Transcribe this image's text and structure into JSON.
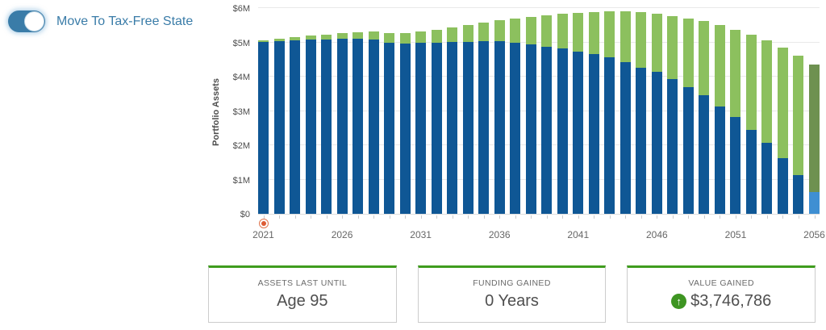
{
  "toggle": {
    "label": "Move To Tax-Free State",
    "state": "on"
  },
  "colors": {
    "bar_blue": "#0f5795",
    "bar_green": "#8cc05e",
    "end_bar_top": "#6e9150",
    "end_bar_bottom": "#3f8fd2",
    "card_accent_green": "#3f9c1e",
    "toggle_blue": "#3a7ca8",
    "marker_orange": "#dd5b33"
  },
  "chart_data": {
    "type": "bar",
    "stacked": true,
    "ylabel": "Portfolio Assets",
    "unit": "millions USD",
    "ylim": [
      0,
      6
    ],
    "grid": "horizontal",
    "y_tick_labels": [
      "$0",
      "$1M",
      "$2M",
      "$3M",
      "$4M",
      "$5M",
      "$6M"
    ],
    "x": [
      2021,
      2022,
      2023,
      2024,
      2025,
      2026,
      2027,
      2028,
      2029,
      2030,
      2031,
      2032,
      2033,
      2034,
      2035,
      2036,
      2037,
      2038,
      2039,
      2040,
      2041,
      2042,
      2043,
      2044,
      2045,
      2046,
      2047,
      2048,
      2049,
      2050,
      2051,
      2052,
      2053,
      2054,
      2055,
      2056
    ],
    "x_tick_labels_shown": [
      "2021",
      "2026",
      "2031",
      "2036",
      "2041",
      "2046",
      "2051",
      "2056"
    ],
    "x_label_interval": 5,
    "series": [
      {
        "name": "series_blue",
        "color": "#0f5795",
        "values": [
          5.01,
          5.04,
          5.06,
          5.08,
          5.09,
          5.1,
          5.1,
          5.08,
          4.98,
          4.97,
          4.99,
          5.0,
          5.01,
          5.02,
          5.03,
          5.04,
          5.0,
          4.95,
          4.88,
          4.82,
          4.74,
          4.67,
          4.57,
          4.43,
          4.26,
          4.13,
          3.92,
          3.7,
          3.45,
          3.14,
          2.83,
          2.45,
          2.06,
          1.63,
          1.14,
          0.63
        ]
      },
      {
        "name": "series_green",
        "color": "#8cc05e",
        "values": [
          0.05,
          0.07,
          0.1,
          0.12,
          0.14,
          0.16,
          0.19,
          0.23,
          0.28,
          0.31,
          0.32,
          0.37,
          0.43,
          0.49,
          0.54,
          0.6,
          0.7,
          0.8,
          0.91,
          1.01,
          1.12,
          1.22,
          1.33,
          1.47,
          1.62,
          1.7,
          1.85,
          2.0,
          2.17,
          2.36,
          2.54,
          2.78,
          3.0,
          3.22,
          3.47,
          3.72
        ]
      }
    ],
    "final_bar": {
      "year": 2056,
      "bottom_color": "#3f8fd2",
      "top_color": "#6e9150"
    },
    "marker_year": 2021
  },
  "cards": [
    {
      "title": "ASSETS LAST UNTIL",
      "value": "Age 95"
    },
    {
      "title": "FUNDING GAINED",
      "value": "0 Years"
    },
    {
      "title": "VALUE GAINED",
      "value": "$3,746,786",
      "icon_glyph": "↑"
    }
  ]
}
